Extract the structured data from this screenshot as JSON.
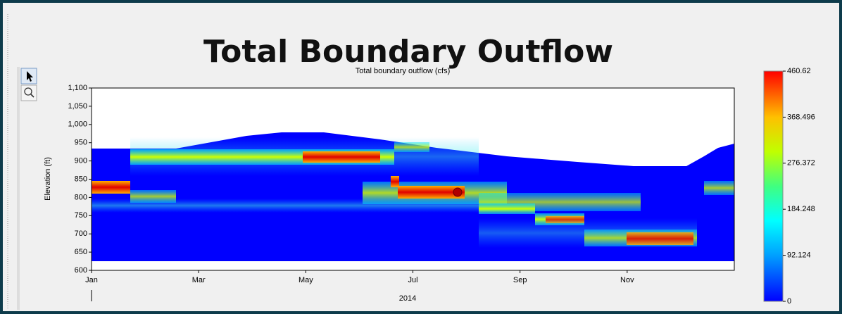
{
  "chart_data": {
    "type": "heatmap",
    "title": "Total Boundary Outflow",
    "subtitle": "Total boundary outflow (cfs)",
    "y_label": "Elevation (ft)",
    "x_label": "2014",
    "xlim": [
      0,
      12
    ],
    "xticks": [
      {
        "value": 0,
        "label": "Jan"
      },
      {
        "value": 2,
        "label": "Mar"
      },
      {
        "value": 4,
        "label": "May"
      },
      {
        "value": 6,
        "label": "Jul"
      },
      {
        "value": 8,
        "label": "Sep"
      },
      {
        "value": 10,
        "label": "Nov"
      }
    ],
    "ylim": [
      600,
      1100
    ],
    "yticks": [
      600,
      650,
      700,
      750,
      800,
      850,
      900,
      950,
      {
        "value": 1000,
        "label": "1,000"
      },
      {
        "value": 1050,
        "label": "1,050"
      },
      {
        "value": 1100,
        "label": "1,100"
      }
    ],
    "clim": [
      0,
      460.62
    ],
    "cticks": [
      0,
      92.124,
      184.248,
      276.372,
      368.496,
      460.62
    ]
  }
}
